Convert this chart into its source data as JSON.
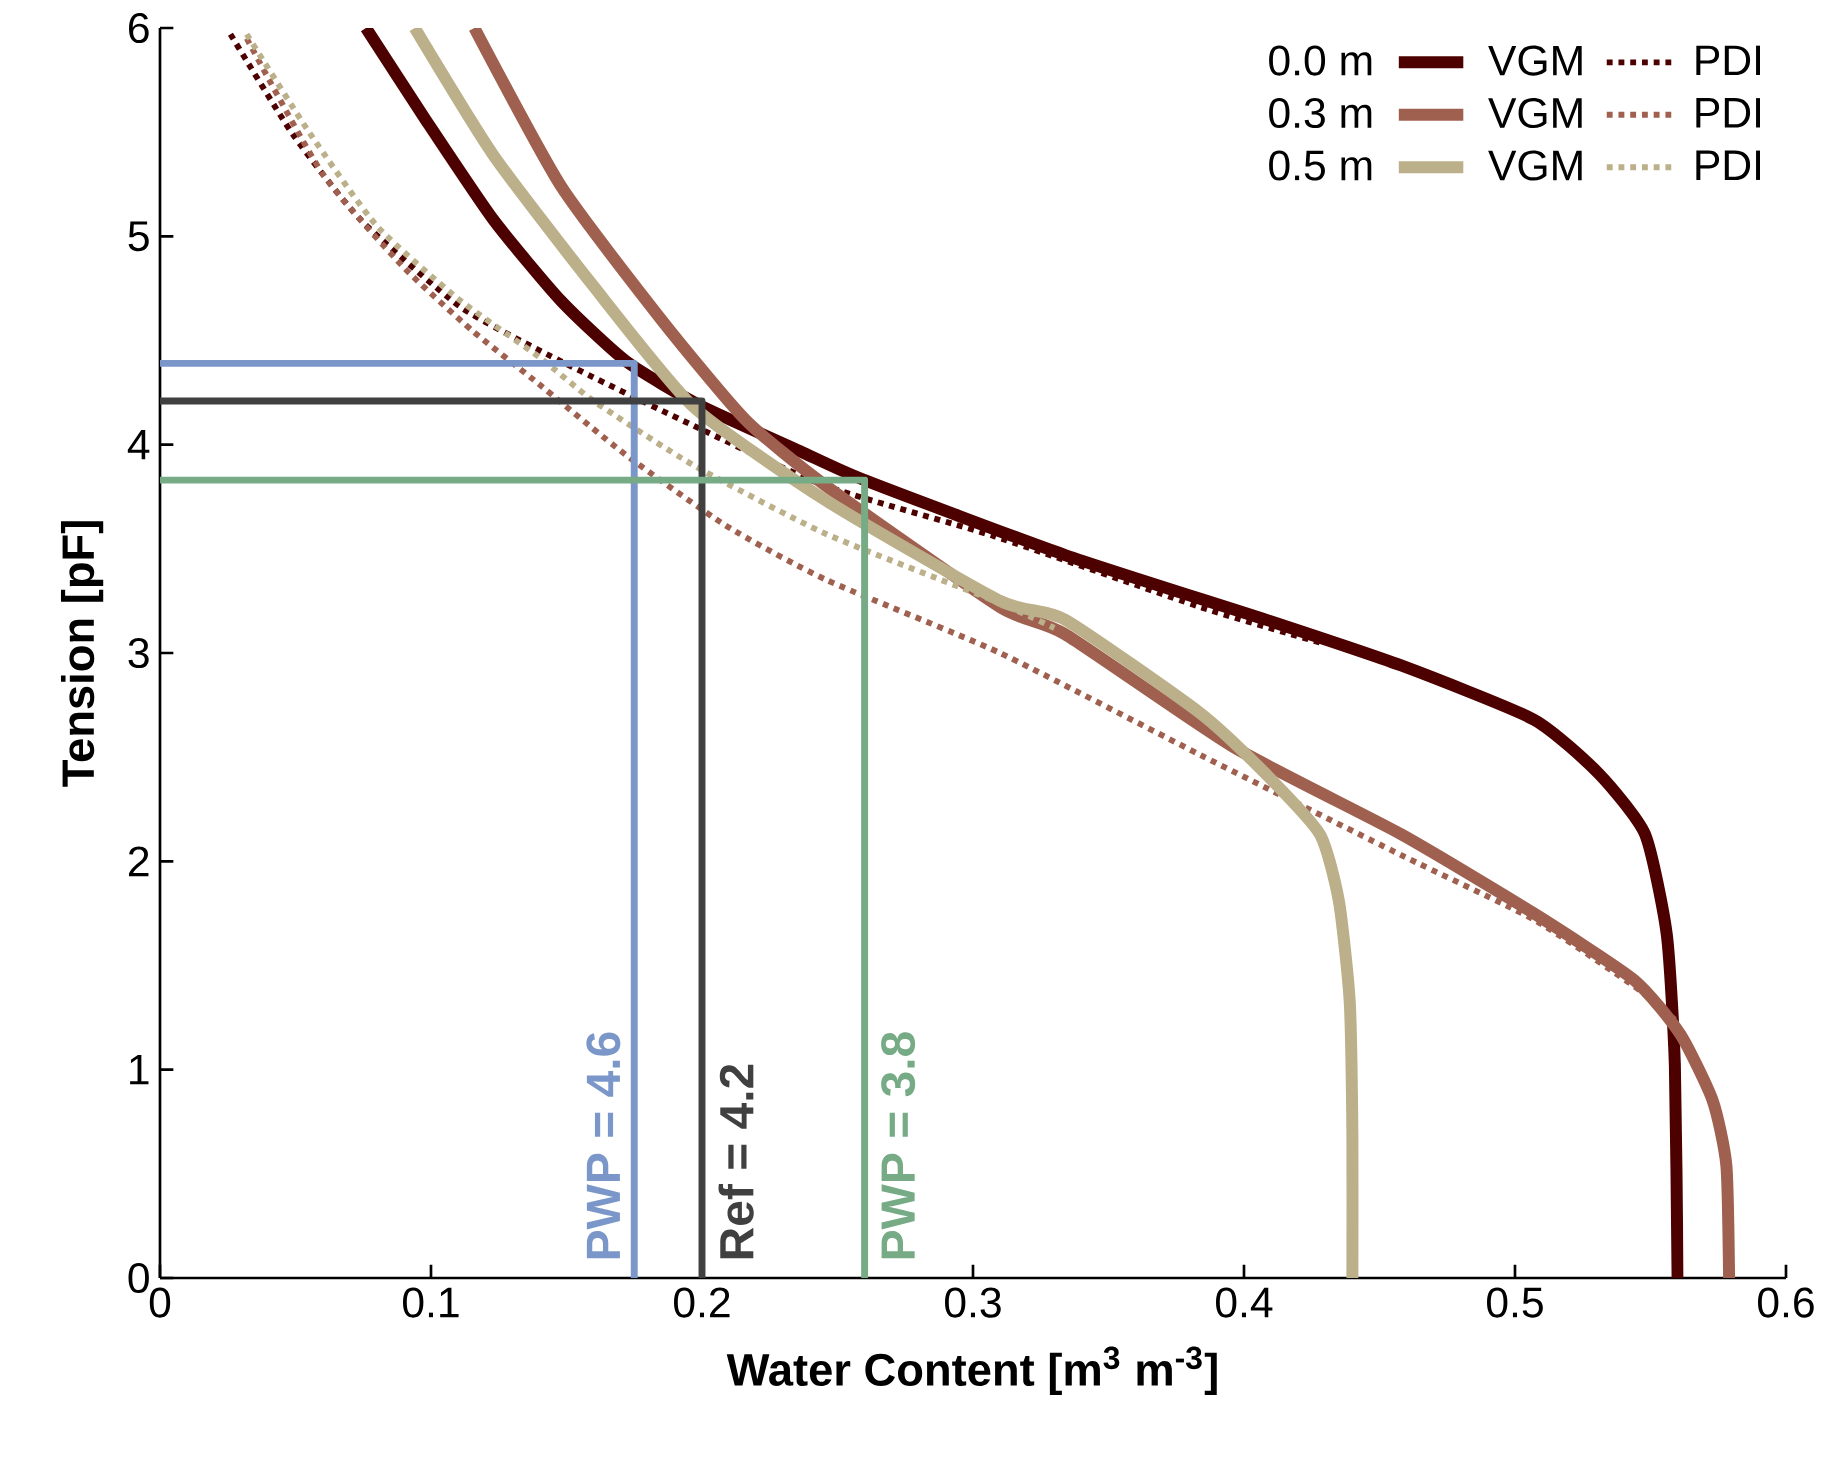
{
  "chart_data": {
    "type": "line",
    "xlabel": "Water Content [m$^{3}$ m$^{-3}$]",
    "ylabel": "Tension [pF]",
    "xlim": [
      0,
      0.6
    ],
    "ylim": [
      0,
      6
    ],
    "xticks": [
      0,
      0.1,
      0.2,
      0.3,
      0.4,
      0.5,
      0.6
    ],
    "yticks": [
      0,
      1,
      2,
      3,
      4,
      5,
      6
    ],
    "legend": "top right",
    "marker": "none",
    "series": [
      {
        "name": "VGM",
        "color": "#4d0000",
        "line_style": "solid",
        "x": [
          0.076,
          0.098,
          0.123,
          0.148,
          0.172,
          0.199,
          0.236,
          0.26,
          0.334,
          0.408,
          0.458,
          0.507,
          0.531,
          0.548,
          0.556,
          0.559,
          0.56
        ],
        "values": [
          6,
          5.56,
          5.08,
          4.69,
          4.4,
          4.19,
          3.97,
          3.83,
          3.47,
          3.16,
          2.94,
          2.68,
          2.42,
          2.13,
          1.65,
          1.02,
          0
        ]
      },
      {
        "name": "PDI",
        "color": "#4d0000",
        "line_style": "dotted",
        "x": [
          0.026,
          0.049,
          0.074,
          0.111,
          0.148,
          0.197,
          0.246,
          0.308,
          0.384,
          0.428
        ],
        "values": [
          5.97,
          5.49,
          5.08,
          4.66,
          4.4,
          4.09,
          3.8,
          3.56,
          3.22,
          3.05
        ]
      },
      {
        "name": "VGM",
        "color": "#a0604f",
        "line_style": "solid",
        "x": [
          0.116,
          0.148,
          0.185,
          0.216,
          0.246,
          0.31,
          0.334,
          0.396,
          0.458,
          0.507,
          0.544,
          0.561,
          0.573,
          0.578,
          0.579
        ],
        "values": [
          6,
          5.24,
          4.6,
          4.12,
          3.8,
          3.22,
          3.09,
          2.55,
          2.13,
          1.75,
          1.43,
          1.17,
          0.85,
          0.54,
          0
        ]
      },
      {
        "name": "PDI",
        "color": "#a0604f",
        "line_style": "dotted",
        "x": [
          0.032,
          0.06,
          0.09,
          0.115,
          0.138,
          0.172,
          0.209,
          0.246,
          0.31,
          0.384,
          0.458,
          0.507,
          0.544,
          0.559
        ],
        "values": [
          5.95,
          5.3,
          4.85,
          4.55,
          4.31,
          3.95,
          3.61,
          3.35,
          3.0,
          2.51,
          2.03,
          1.72,
          1.4,
          1.24
        ]
      },
      {
        "name": "VGM",
        "color": "#bcb08a",
        "line_style": "solid",
        "x": [
          0.094,
          0.123,
          0.16,
          0.197,
          0.246,
          0.31,
          0.334,
          0.384,
          0.408,
          0.428,
          0.435,
          0.439,
          0.44,
          0.44
        ],
        "values": [
          6,
          5.39,
          4.76,
          4.18,
          3.73,
          3.25,
          3.16,
          2.71,
          2.42,
          2.13,
          1.81,
          1.33,
          0.69,
          0
        ]
      },
      {
        "name": "PDI",
        "color": "#bcb08a",
        "line_style": "dotted",
        "x": [
          0.032,
          0.055,
          0.08,
          0.11,
          0.14,
          0.16,
          0.197,
          0.246,
          0.308,
          0.33
        ],
        "values": [
          5.97,
          5.5,
          5.05,
          4.7,
          4.42,
          4.21,
          3.9,
          3.57,
          3.25,
          3.12
        ]
      },
      {
        "color": "#7b97c9",
        "line_style": "solid",
        "x": [
          0,
          0.175,
          0.175
        ],
        "values": [
          4.39,
          4.39,
          0
        ]
      },
      {
        "color": "#404040",
        "line_style": "solid",
        "x": [
          0,
          0.2,
          0.2
        ],
        "values": [
          4.21,
          4.21,
          0
        ]
      },
      {
        "color": "#76ab86",
        "line_style": "solid",
        "x": [
          0,
          0.26,
          0.26
        ],
        "values": [
          3.83,
          3.83,
          0
        ]
      }
    ],
    "annotations": [
      "0.0 m",
      "0.3 m",
      "0.5 m",
      "PWP = 4.6",
      "Ref = 4.2",
      "PWP = 3.8"
    ]
  }
}
